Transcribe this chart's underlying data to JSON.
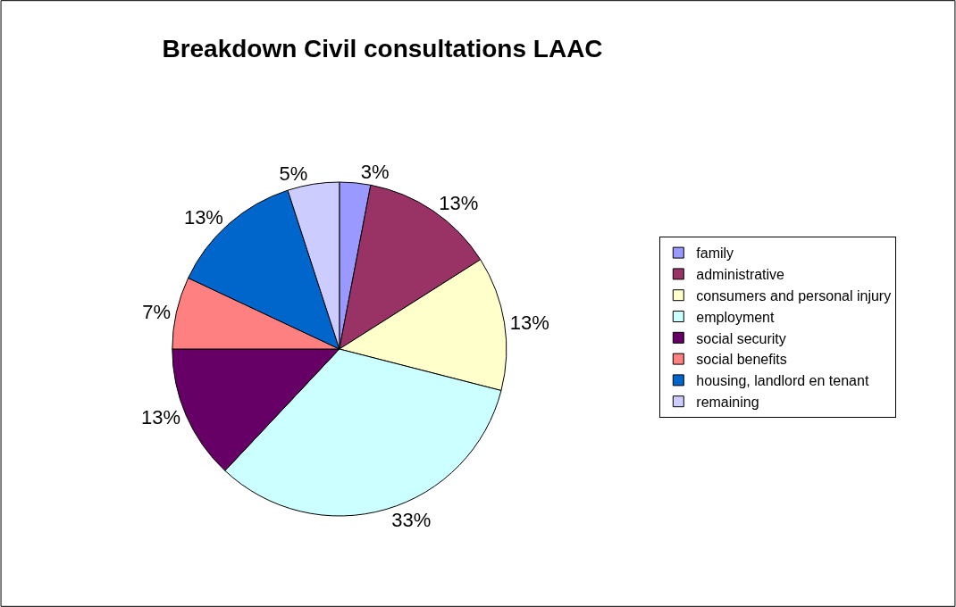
{
  "chart_data": {
    "type": "pie",
    "title": "Breakdown Civil consultations LAAC",
    "categories": [
      "family",
      "administrative",
      "consumers and personal injury",
      "employment",
      "social security",
      "social benefits",
      "housing, landlord en tenant",
      "remaining"
    ],
    "values": [
      3,
      13,
      13,
      33,
      13,
      7,
      13,
      5
    ],
    "colors": [
      "#9999ff",
      "#993366",
      "#ffffcc",
      "#ccffff",
      "#660066",
      "#ff8080",
      "#0066cc",
      "#ccccff"
    ],
    "value_labels": [
      "3%",
      "13%",
      "13%",
      "33%",
      "13%",
      "7%",
      "13%",
      "5%"
    ],
    "legend": "right"
  }
}
